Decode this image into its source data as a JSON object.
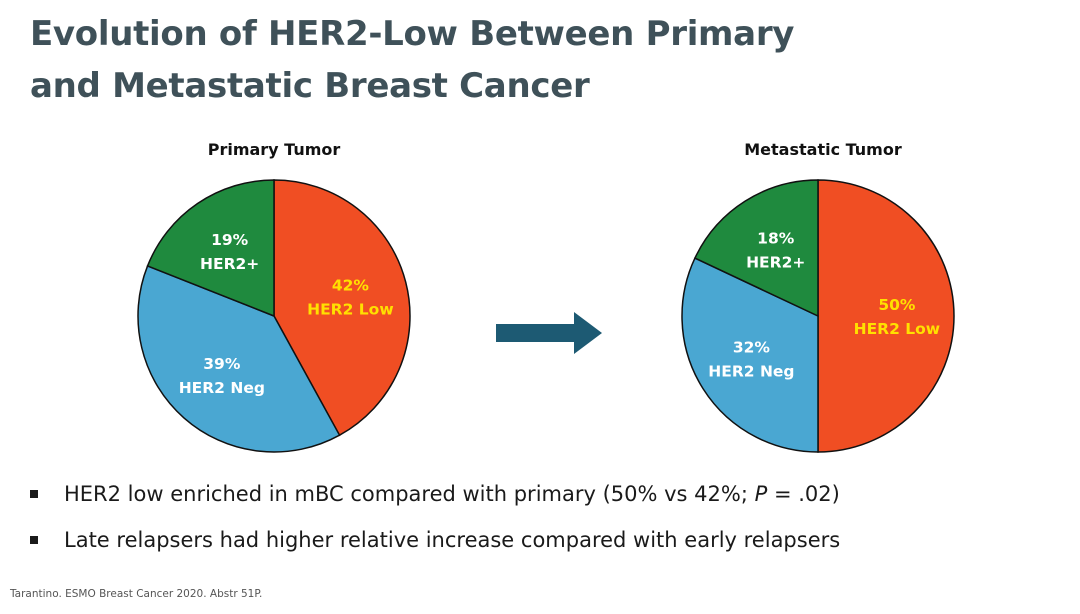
{
  "slide": {
    "title_line1": "Evolution of HER2-Low Between Primary",
    "title_line2": "and Metastatic Breast Cancer"
  },
  "chart_data": [
    {
      "type": "pie",
      "title": "Primary Tumor",
      "slices": [
        {
          "label": "HER2 Low",
          "value": 42,
          "display": "42%",
          "color": "#f04e23",
          "text_color": "#ffe000"
        },
        {
          "label": "HER2 Neg",
          "value": 39,
          "display": "39%",
          "color": "#4aa7d2",
          "text_color": "#ffffff"
        },
        {
          "label": "HER2+",
          "value": 19,
          "display": "19%",
          "color": "#1f8a3e",
          "text_color": "#ffffff"
        }
      ]
    },
    {
      "type": "pie",
      "title": "Metastatic Tumor",
      "slices": [
        {
          "label": "HER2 Low",
          "value": 50,
          "display": "50%",
          "color": "#f04e23",
          "text_color": "#ffe000"
        },
        {
          "label": "HER2 Neg",
          "value": 32,
          "display": "32%",
          "color": "#4aa7d2",
          "text_color": "#ffffff"
        },
        {
          "label": "HER2+",
          "value": 18,
          "display": "18%",
          "color": "#1f8a3e",
          "text_color": "#ffffff"
        }
      ]
    }
  ],
  "arrow_color": "#1d5a73",
  "bullets": [
    {
      "before": "HER2 low enriched in mBC compared with primary (50% vs 42%; ",
      "italic": "P",
      "after": " = .02)"
    },
    {
      "before": "Late relapsers had higher relative increase compared with early relapsers",
      "italic": "",
      "after": ""
    }
  ],
  "footnote": "Tarantino. ESMO Breast Cancer 2020. Abstr 51P."
}
